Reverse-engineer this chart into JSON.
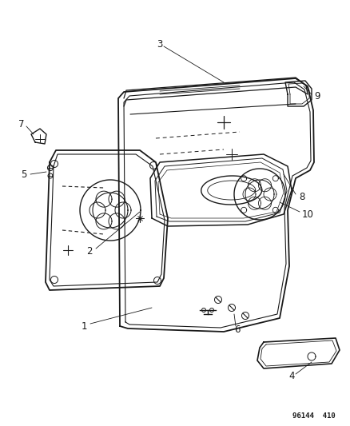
{
  "background_color": "#ffffff",
  "line_color": "#1a1a1a",
  "figsize": [
    4.39,
    5.33
  ],
  "dpi": 100,
  "footer_text": "96144  410"
}
